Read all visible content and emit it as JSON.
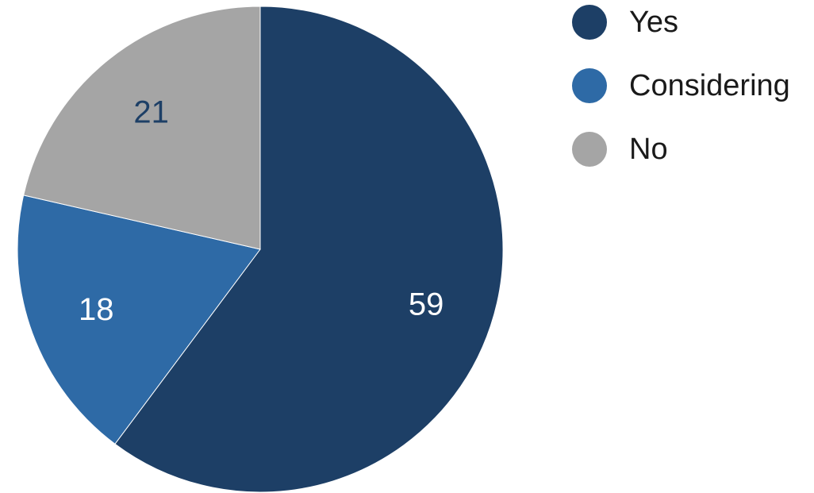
{
  "chart_data": {
    "type": "pie",
    "start": "12 o'clock",
    "direction": "clockwise",
    "slices": [
      {
        "label": "Yes",
        "value": 59,
        "color": "#1d3f66",
        "label_color": "#ffffff"
      },
      {
        "label": "Considering",
        "value": 18,
        "color": "#2e6aa6",
        "label_color": "#ffffff"
      },
      {
        "label": "No",
        "value": 21,
        "color": "#a5a5a5",
        "label_color": "#1d3f66"
      }
    ],
    "legend": {
      "position": "top-right",
      "entries": [
        "Yes",
        "Considering",
        "No"
      ]
    }
  }
}
